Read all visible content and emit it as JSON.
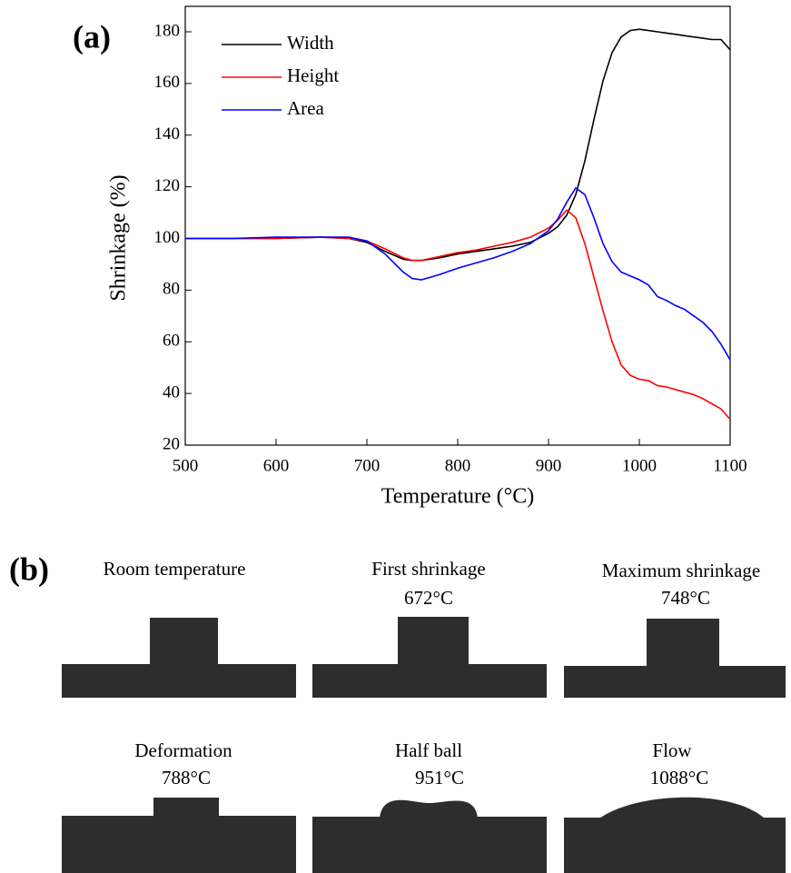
{
  "panel_a_label": "(a)",
  "chart_data": {
    "type": "line",
    "x_label": "Temperature (°C)",
    "y_label": "Shrinkage (%)",
    "x": [
      500,
      550,
      600,
      650,
      680,
      700,
      720,
      740,
      750,
      760,
      780,
      800,
      820,
      840,
      860,
      880,
      900,
      910,
      920,
      930,
      940,
      950,
      960,
      970,
      980,
      990,
      1000,
      1010,
      1020,
      1030,
      1040,
      1050,
      1060,
      1070,
      1080,
      1090,
      1100
    ],
    "series": [
      {
        "name": "Width",
        "color": "#000000",
        "values": [
          100,
          100,
          100,
          100.5,
          100,
          98.5,
          95,
          92,
          91.5,
          91.5,
          92.5,
          94,
          95,
          96,
          97,
          98.5,
          102,
          104.5,
          109,
          117,
          130,
          146,
          161,
          172,
          178,
          180.5,
          181,
          180.5,
          180,
          179.5,
          179,
          178.5,
          178,
          177.5,
          177,
          177,
          173
        ]
      },
      {
        "name": "Height",
        "color": "#ff0000",
        "values": [
          100,
          100,
          100,
          100.5,
          100,
          99,
          96,
          92.5,
          91.5,
          91.5,
          93,
          94.5,
          95.5,
          97,
          98.5,
          100.5,
          104,
          107,
          111,
          108,
          98,
          85,
          72,
          60,
          51,
          47,
          45.5,
          45,
          43,
          42.5,
          41.5,
          40.5,
          39.5,
          38,
          36,
          34,
          30
        ]
      },
      {
        "name": "Area",
        "color": "#0000ff",
        "values": [
          100,
          100,
          100.5,
          100.5,
          100.5,
          99,
          94,
          87,
          84.5,
          84,
          86,
          88.5,
          90.5,
          92.5,
          95,
          98,
          103,
          107.5,
          114,
          119.5,
          117,
          108,
          98,
          91,
          87,
          85.5,
          84,
          82,
          77.5,
          76,
          74,
          72.5,
          70,
          67.5,
          64,
          59,
          53
        ]
      }
    ],
    "xlim": [
      500,
      1100
    ],
    "xticks": [
      500,
      600,
      700,
      800,
      900,
      1000,
      1100
    ],
    "ylim": [
      20,
      180
    ],
    "yticks": [
      20,
      40,
      60,
      80,
      100,
      120,
      140,
      160,
      180
    ],
    "legend": "upper left",
    "grid": false
  },
  "panel_b": {
    "label": "(b)",
    "images": [
      {
        "title": "Room temperature"
      },
      {
        "title": "First shrinkage",
        "temperature": "672°C"
      },
      {
        "title": "Maximum shrinkage",
        "temperature": "748°C"
      },
      {
        "title": "Deformation",
        "temperature": "788°C"
      },
      {
        "title": "Half ball",
        "temperature": "951°C"
      },
      {
        "title": "Flow",
        "temperature": "1088°C"
      }
    ]
  }
}
